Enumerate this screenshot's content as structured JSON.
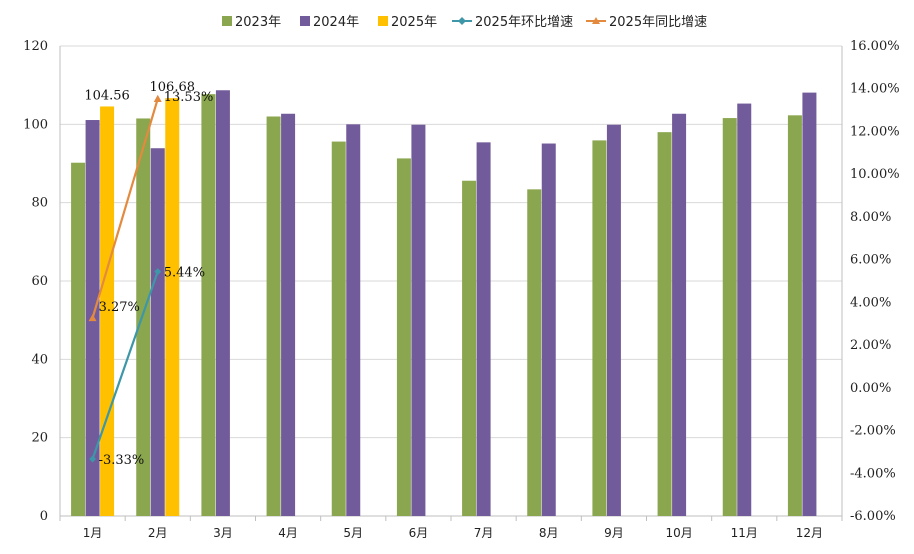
{
  "chart_data": {
    "type": "bar",
    "categories": [
      "1月",
      "2月",
      "3月",
      "4月",
      "5月",
      "6月",
      "7月",
      "8月",
      "9月",
      "10月",
      "11月",
      "12月"
    ],
    "ylim": [
      0,
      120
    ],
    "y_ticks": [
      "0",
      "20",
      "40",
      "60",
      "80",
      "100",
      "120"
    ],
    "y2lim": [
      -6,
      16
    ],
    "y2_ticks": [
      "-6.00%",
      "-4.00%",
      "-2.00%",
      "0.00%",
      "2.00%",
      "4.00%",
      "6.00%",
      "8.00%",
      "10.00%",
      "12.00%",
      "14.00%",
      "16.00%"
    ],
    "grid": true,
    "legend_position": "top",
    "series": [
      {
        "name": "2023年",
        "kind": "bar",
        "axis": "left",
        "color": "#8aa64e",
        "values": [
          90.2,
          101.5,
          107.7,
          102.0,
          95.6,
          91.3,
          85.6,
          83.4,
          95.9,
          98.0,
          101.6,
          102.3
        ]
      },
      {
        "name": "2024年",
        "kind": "bar",
        "axis": "left",
        "color": "#725b9a",
        "values": [
          101.1,
          93.9,
          108.7,
          102.7,
          100.0,
          99.9,
          95.4,
          95.1,
          99.9,
          102.7,
          105.3,
          108.1
        ]
      },
      {
        "name": "2025年",
        "kind": "bar",
        "axis": "left",
        "color": "#ffc000",
        "values": [
          104.56,
          106.68,
          null,
          null,
          null,
          null,
          null,
          null,
          null,
          null,
          null,
          null
        ]
      },
      {
        "name": "2025年环比增速",
        "kind": "line",
        "axis": "right",
        "color": "#3d97a8",
        "marker": "diamond",
        "values": [
          -3.33,
          5.44,
          null,
          null,
          null,
          null,
          null,
          null,
          null,
          null,
          null,
          null
        ]
      },
      {
        "name": "2025年同比增速",
        "kind": "line",
        "axis": "right",
        "color": "#e38a3f",
        "marker": "triangle",
        "values": [
          3.27,
          13.53,
          null,
          null,
          null,
          null,
          null,
          null,
          null,
          null,
          null,
          null
        ]
      }
    ],
    "data_labels": {
      "bar_2025": [
        "104.56",
        "106.68"
      ],
      "mom": [
        "-3.33%",
        "5.44%"
      ],
      "yoy": [
        "3.27%",
        "13.53%"
      ]
    }
  }
}
